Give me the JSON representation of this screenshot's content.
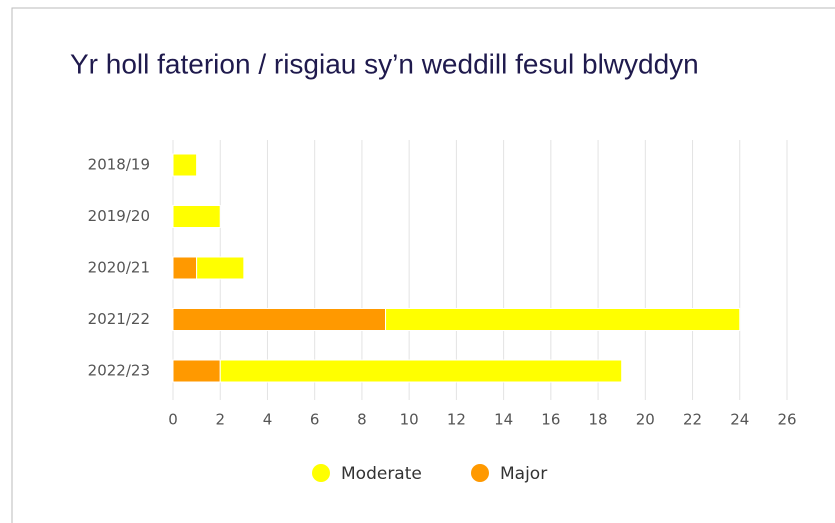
{
  "chart_data": {
    "type": "stacked_bar_horizontal",
    "title": "Yr holl faterion / risgiau sy’n weddill fesul blwyddyn",
    "categories": [
      "2018/19",
      "2019/20",
      "2020/21",
      "2021/22",
      "2022/23"
    ],
    "series": [
      {
        "name": "Moderate",
        "color": "#ffff00",
        "values": [
          1,
          2,
          2,
          15,
          17
        ]
      },
      {
        "name": "Major",
        "color": "#ff9900",
        "values": [
          0,
          0,
          1,
          9,
          2
        ]
      }
    ],
    "stack_order": [
      "Major",
      "Moderate"
    ],
    "xlim": [
      0,
      26
    ],
    "xticks": [
      0,
      2,
      4,
      6,
      8,
      10,
      12,
      14,
      16,
      18,
      20,
      22,
      24,
      26
    ],
    "grid": true,
    "legend": "bottom"
  }
}
